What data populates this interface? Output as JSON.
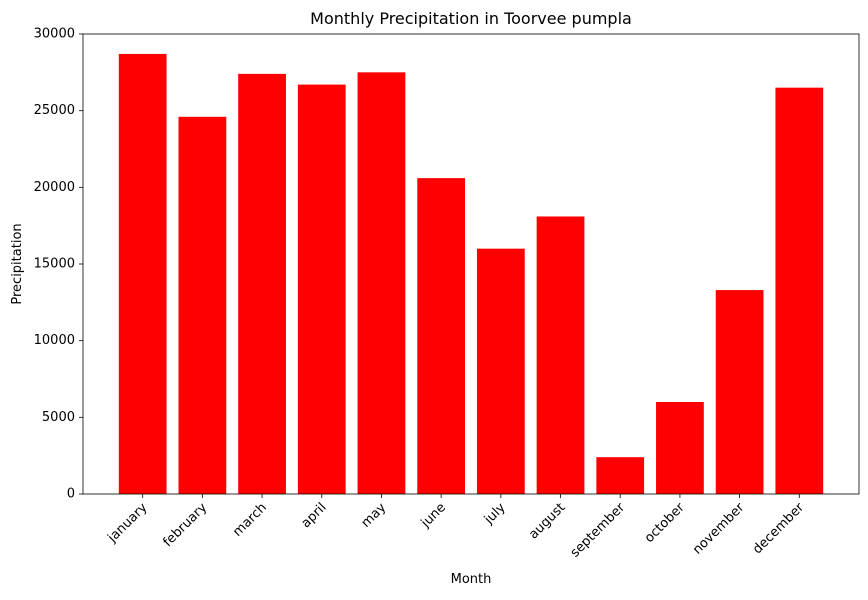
{
  "chart_data": {
    "type": "bar",
    "title": "Monthly Precipitation in Toorvee pumpla",
    "xlabel": "Month",
    "ylabel": "Precipitation",
    "categories": [
      "january",
      "february",
      "march",
      "april",
      "may",
      "june",
      "july",
      "august",
      "september",
      "october",
      "november",
      "december"
    ],
    "values": [
      28700,
      24600,
      27400,
      26700,
      27500,
      20600,
      16000,
      18100,
      2400,
      6000,
      13300,
      26500
    ],
    "ylim": [
      0,
      30000
    ],
    "yticks": [
      0,
      5000,
      10000,
      15000,
      20000,
      25000,
      30000
    ],
    "bar_color": "#ff0000",
    "grid": false,
    "legend": "none"
  }
}
